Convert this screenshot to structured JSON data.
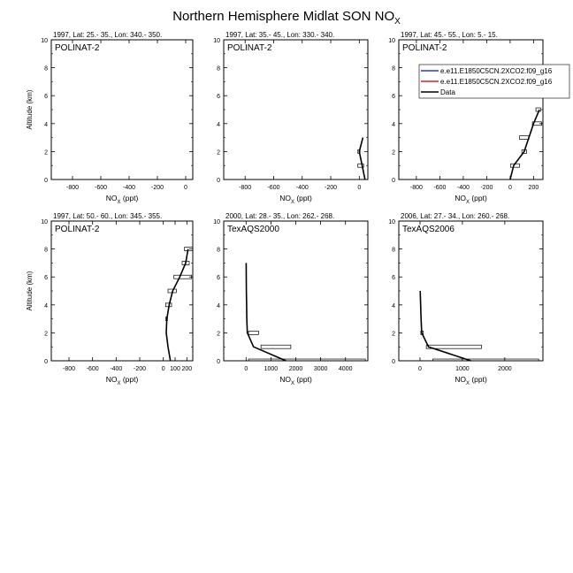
{
  "title_main": "Northern Hemisphere Midlat SON NO",
  "title_sub": "X",
  "legend": [
    {
      "label": "e.e11.E1850C5CN.2XCO2.f09_g16",
      "color": "#1f3fd6"
    },
    {
      "label": "e.e11.E1850C5CN.2XCO2.f09_g16",
      "color": "#e02020"
    },
    {
      "label": "Data",
      "color": "#000000"
    }
  ],
  "chart_data": [
    {
      "type": "line",
      "header": "1997, Lat: 25.- 35., Lon: 340.- 350.",
      "campaign": "POLINAT-2",
      "xlabel": "NOX (ppt)",
      "ylabel": "Altitude (km)",
      "xlim": [
        -950,
        50
      ],
      "ylim": [
        0,
        10
      ],
      "xticks": [
        -800,
        -600,
        -400,
        -200,
        0
      ],
      "yticks": [
        0,
        2,
        4,
        6,
        8,
        10
      ],
      "series": [],
      "boxes": []
    },
    {
      "type": "line",
      "header": "1997, Lat: 35.- 45., Lon: 330.- 340.",
      "campaign": "POLINAT-2",
      "xlabel": "NOX (ppt)",
      "ylabel": "",
      "xlim": [
        -950,
        60
      ],
      "ylim": [
        0,
        10
      ],
      "xticks": [
        -800,
        -600,
        -400,
        -200,
        0
      ],
      "yticks": [
        0,
        2,
        4,
        6,
        8,
        10
      ],
      "series": [
        {
          "name": "Data",
          "x": [
            40,
            0,
            25
          ],
          "y": [
            0,
            2,
            3
          ]
        }
      ],
      "boxes": [
        {
          "x0": -10,
          "x1": 30,
          "y": 1,
          "h": 0.25
        },
        {
          "x0": -10,
          "x1": 5,
          "y": 2,
          "h": 0.25
        }
      ]
    },
    {
      "type": "line",
      "header": "1997, Lat: 45.- 55., Lon: 5.- 15.",
      "campaign": "POLINAT-2",
      "xlabel": "NOX (ppt)",
      "ylabel": "",
      "xlim": [
        -950,
        280
      ],
      "ylim": [
        0,
        10
      ],
      "xticks": [
        -800,
        -600,
        -400,
        -200,
        0,
        200
      ],
      "yticks": [
        0,
        2,
        4,
        6,
        8,
        10
      ],
      "series": [
        {
          "name": "Data",
          "x": [
            0,
            30,
            120,
            200,
            250
          ],
          "y": [
            0,
            1,
            2,
            4,
            5
          ]
        }
      ],
      "boxes": [
        {
          "x0": 5,
          "x1": 80,
          "y": 1,
          "h": 0.25
        },
        {
          "x0": 100,
          "x1": 140,
          "y": 2,
          "h": 0.25
        },
        {
          "x0": 80,
          "x1": 160,
          "y": 3,
          "h": 0.25
        },
        {
          "x0": 190,
          "x1": 270,
          "y": 4,
          "h": 0.25
        },
        {
          "x0": 220,
          "x1": 260,
          "y": 5,
          "h": 0.25
        }
      ]
    },
    {
      "type": "line",
      "header": "1997, Lat: 50.- 60., Lon: 345.- 355.",
      "campaign": "POLINAT-2",
      "xlabel": "NOX (ppt)",
      "ylabel": "Altitude (km)",
      "xlim": [
        -950,
        250
      ],
      "ylim": [
        0,
        10
      ],
      "xticks": [
        -800,
        -600,
        -400,
        -200,
        0,
        100,
        200
      ],
      "yticks": [
        0,
        2,
        4,
        6,
        8,
        10
      ],
      "series": [
        {
          "name": "Data",
          "x": [
            60,
            40,
            25,
            30,
            50,
            80,
            140,
            190,
            210
          ],
          "y": [
            0,
            1,
            2,
            3,
            4,
            5,
            6,
            7,
            8
          ]
        }
      ],
      "boxes": [
        {
          "x0": 20,
          "x1": 35,
          "y": 3,
          "h": 0.25
        },
        {
          "x0": 20,
          "x1": 70,
          "y": 4,
          "h": 0.25
        },
        {
          "x0": 40,
          "x1": 110,
          "y": 5,
          "h": 0.25
        },
        {
          "x0": 90,
          "x1": 240,
          "y": 6,
          "h": 0.25
        },
        {
          "x0": 160,
          "x1": 220,
          "y": 7,
          "h": 0.25
        },
        {
          "x0": 180,
          "x1": 250,
          "y": 8,
          "h": 0.25
        }
      ]
    },
    {
      "type": "line",
      "header": "2000, Lat: 28.- 35., Lon: 262.- 268.",
      "campaign": "TexAQS2000",
      "xlabel": "NOX (ppt)",
      "ylabel": "",
      "xlim": [
        -900,
        4900
      ],
      "ylim": [
        0,
        10
      ],
      "xticks": [
        0,
        1000,
        2000,
        3000,
        4000
      ],
      "yticks": [
        0,
        2,
        4,
        6,
        8,
        10
      ],
      "series": [
        {
          "name": "Data",
          "x": [
            1600,
            300,
            50,
            30,
            20,
            10,
            5
          ],
          "y": [
            0,
            1,
            2,
            3,
            4,
            5,
            7
          ]
        }
      ],
      "boxes": [
        {
          "x0": 100,
          "x1": 4800,
          "y": 0,
          "h": 0.25
        },
        {
          "x0": 600,
          "x1": 1800,
          "y": 1,
          "h": 0.25
        },
        {
          "x0": 100,
          "x1": 500,
          "y": 2,
          "h": 0.25
        }
      ]
    },
    {
      "type": "line",
      "header": "2006, Lat: 27.- 34., Lon: 260.- 268.",
      "campaign": "TexAQS2006",
      "xlabel": "NOX (ppt)",
      "ylabel": "",
      "xlim": [
        -500,
        2900
      ],
      "ylim": [
        0,
        10
      ],
      "xticks": [
        0,
        1000,
        2000
      ],
      "yticks": [
        0,
        2,
        4,
        6,
        8,
        10
      ],
      "series": [
        {
          "name": "Data",
          "x": [
            1200,
            200,
            40,
            25,
            15,
            5
          ],
          "y": [
            0,
            1,
            2,
            3,
            4,
            5
          ]
        }
      ],
      "boxes": [
        {
          "x0": 300,
          "x1": 2800,
          "y": 0,
          "h": 0.25
        },
        {
          "x0": 150,
          "x1": 1450,
          "y": 1,
          "h": 0.25
        },
        {
          "x0": 20,
          "x1": 80,
          "y": 2,
          "h": 0.25
        }
      ]
    }
  ]
}
